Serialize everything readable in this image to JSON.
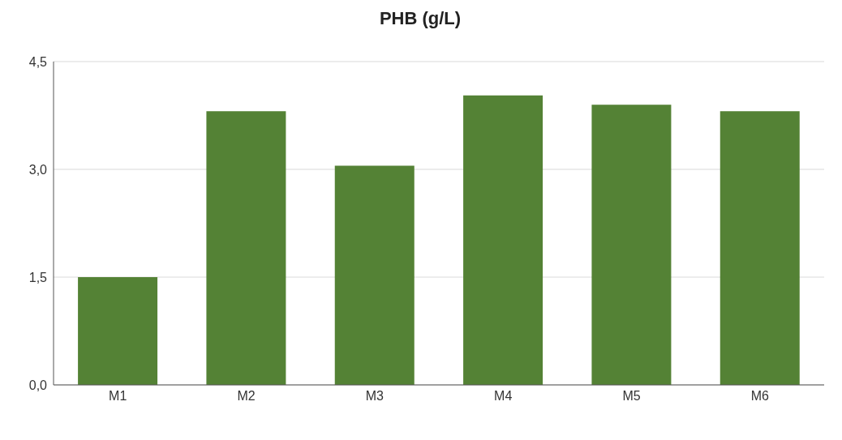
{
  "chart_data": {
    "type": "bar",
    "title": "PHB (g/L)",
    "categories": [
      "M1",
      "M2",
      "M3",
      "M4",
      "M5",
      "M6"
    ],
    "values": [
      1.5,
      3.81,
      3.05,
      4.03,
      3.9,
      3.81
    ],
    "color": "#548235",
    "ylim": [
      0,
      4.5
    ],
    "yticks": [
      {
        "value": 0,
        "label": "0,0"
      },
      {
        "value": 1.5,
        "label": "1,5"
      },
      {
        "value": 3,
        "label": "3,0"
      },
      {
        "value": 4.5,
        "label": "4,5"
      }
    ],
    "grid": "y"
  }
}
